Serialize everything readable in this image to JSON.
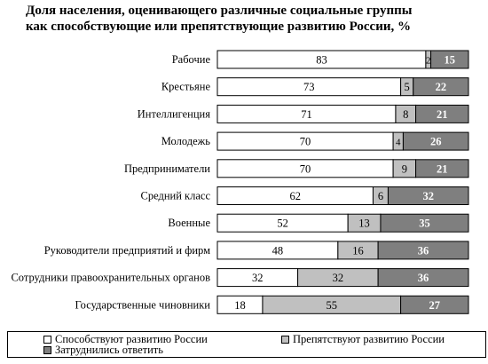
{
  "chart_data": {
    "type": "bar",
    "orientation": "horizontal",
    "stacked": true,
    "title": "Доля населения, оценивающего различные социальные группы как способствующие или препятствующие развитию России, %",
    "title_lines": [
      "Доля населения, оценивающего различные социальные группы",
      "как способствующие или препятствующие развитию России, %"
    ],
    "categories": [
      "Рабочие",
      "Крестьяне",
      "Интеллигенция",
      "Молодежь",
      "Предприниматели",
      "Средний класс",
      "Военные",
      "Руководители предприятий и фирм",
      "Сотрудники правоохранительных органов",
      "Государственные чиновники"
    ],
    "series": [
      {
        "name": "Способствуют развитию России",
        "color": "#ffffff",
        "values": [
          83,
          73,
          71,
          70,
          70,
          62,
          52,
          48,
          32,
          18
        ]
      },
      {
        "name": "Препятствуют развитию России",
        "color": "#c0c0c0",
        "values": [
          2,
          5,
          8,
          4,
          9,
          6,
          13,
          16,
          32,
          55
        ]
      },
      {
        "name": "Затруднились ответить",
        "color": "#7f7f7f",
        "values": [
          15,
          22,
          21,
          26,
          21,
          32,
          35,
          36,
          36,
          27
        ]
      }
    ],
    "xlim": [
      0,
      100
    ],
    "legend_position": "bottom",
    "grid": false
  }
}
